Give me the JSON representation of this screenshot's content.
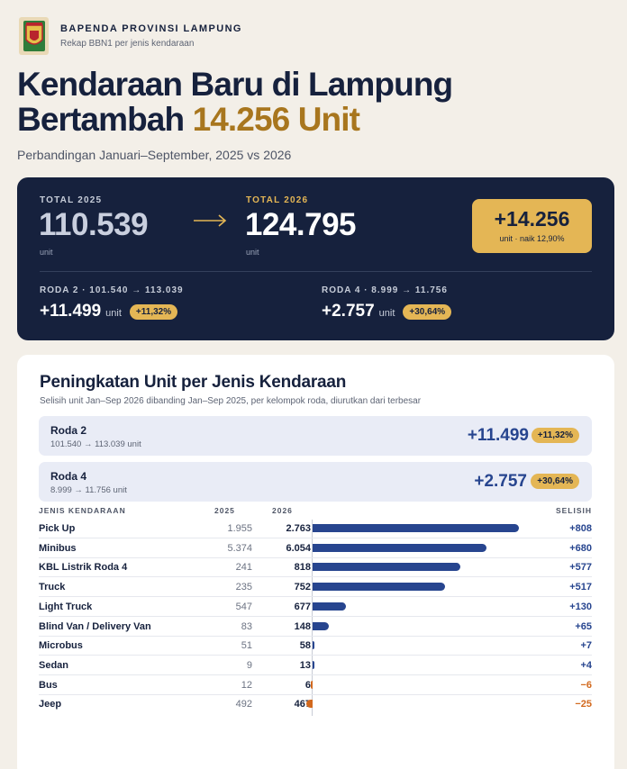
{
  "brand": {
    "title": "BAPENDA PROVINSI LAMPUNG",
    "subtitle": "Rekap BBN1 per jenis kendaraan",
    "logo_lettering": "LAMPUNG"
  },
  "headline": {
    "line1": "Kendaraan Baru di Lampung",
    "line2_prefix": "Bertambah ",
    "line2_accent": "14.256 Unit"
  },
  "subheadline": "Perbandingan Januari–September, 2025 vs 2026",
  "summary": {
    "label_2025": "TOTAL 2025",
    "value_2025": "110.539",
    "unit_2025": "unit",
    "label_2026": "TOTAL 2026",
    "value_2026": "124.795",
    "unit_2026": "unit",
    "delta_value": "+14.256",
    "delta_note": "unit · naik 12,90%",
    "roda2_label": "RODA 2 · 101.540 → 113.039",
    "roda2_value": "+11.499",
    "roda2_unit": "unit",
    "roda2_pct": "+11,32%",
    "roda4_label": "RODA 4 · 8.999 → 11.756",
    "roda4_value": "+2.757",
    "roda4_unit": "unit",
    "roda4_pct": "+30,64%"
  },
  "card": {
    "title": "Peningkatan Unit per Jenis Kendaraan",
    "subtitle": "Selisih unit Jan–Sep 2026 dibanding Jan–Sep 2025, per kelompok roda, diurutkan dari terbesar"
  },
  "groups": [
    {
      "name": "Roda 2",
      "range": "101.540 → 113.039 unit",
      "value": "+11.499",
      "pct": "+11,32%"
    },
    {
      "name": "Roda 4",
      "range": "8.999 → 11.756 unit",
      "value": "+2.757",
      "pct": "+30,64%"
    }
  ],
  "table": {
    "headers": {
      "name": "JENIS KENDARAAN",
      "y2025": "2025",
      "y2026": "2026",
      "diff": "SELISIH"
    },
    "rows": [
      {
        "name": "Pick Up",
        "y2025": "1.955",
        "y2026": "2.763",
        "diff": "+808",
        "value": 808
      },
      {
        "name": "Minibus",
        "y2025": "5.374",
        "y2026": "6.054",
        "diff": "+680",
        "value": 680
      },
      {
        "name": "KBL Listrik Roda 4",
        "y2025": "241",
        "y2026": "818",
        "diff": "+577",
        "value": 577
      },
      {
        "name": "Truck",
        "y2025": "235",
        "y2026": "752",
        "diff": "+517",
        "value": 517
      },
      {
        "name": "Light Truck",
        "y2025": "547",
        "y2026": "677",
        "diff": "+130",
        "value": 130
      },
      {
        "name": "Blind Van / Delivery Van",
        "y2025": "83",
        "y2026": "148",
        "diff": "+65",
        "value": 65
      },
      {
        "name": "Microbus",
        "y2025": "51",
        "y2026": "58",
        "diff": "+7",
        "value": 7
      },
      {
        "name": "Sedan",
        "y2025": "9",
        "y2026": "13",
        "diff": "+4",
        "value": 4
      },
      {
        "name": "Bus",
        "y2025": "12",
        "y2026": "6",
        "diff": "−6",
        "value": -6
      },
      {
        "name": "Jeep",
        "y2025": "492",
        "y2026": "467",
        "diff": "−25",
        "value": -25
      }
    ]
  },
  "colors": {
    "navy": "#16213d",
    "gold": "#e4b655",
    "gold_text": "#a8761e",
    "positive": "#27458f",
    "negative": "#d2691e"
  }
}
